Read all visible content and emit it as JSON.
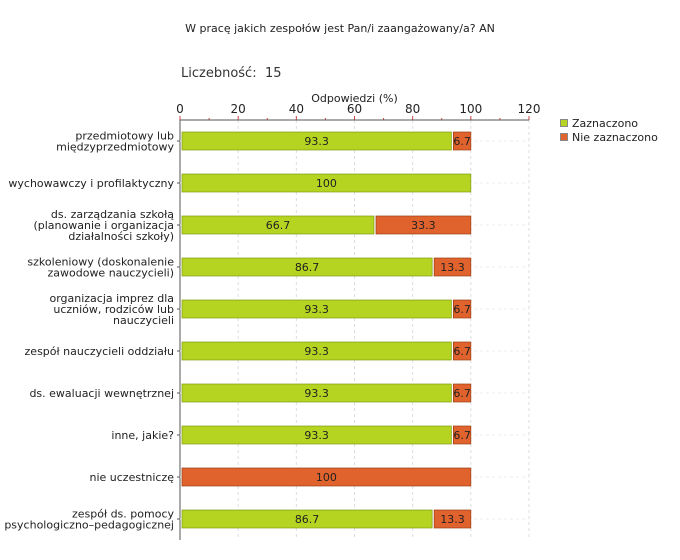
{
  "header": {
    "title": "W pracę jakich zespołów jest Pan/i zaangażowany/a? AN",
    "count_label": "Liczebność:",
    "count_value": "15"
  },
  "legend": {
    "items": [
      {
        "label": "Zaznaczono",
        "color": "#b5d422"
      },
      {
        "label": "Nie zaznaczono",
        "color": "#e0622c"
      }
    ]
  },
  "chart_data": {
    "type": "bar",
    "orientation": "horizontal",
    "stacked": true,
    "title": "W pracę jakich zespołów jest Pan/i zaangażowany/a? AN",
    "xlabel": "Odpowiedzi (%)",
    "ylabel": "",
    "xlim": [
      0,
      120
    ],
    "xticks": [
      0,
      20,
      40,
      60,
      80,
      100,
      120
    ],
    "grid": true,
    "legend_position": "right",
    "categories": [
      [
        "przedmiotowy lub",
        "międzyprzedmiotowy"
      ],
      [
        "wychowawczy i profilaktyczny"
      ],
      [
        "ds. zarządzania szkołą",
        "(planowanie i organizacja",
        "działalności szkoły)"
      ],
      [
        "szkoleniowy (doskonalenie",
        "zawodowe nauczycieli)"
      ],
      [
        "organizacja imprez dla",
        "uczniów, rodziców lub",
        "nauczycieli"
      ],
      [
        "zespół nauczycieli oddziału"
      ],
      [
        "ds. ewaluacji wewnętrznej"
      ],
      [
        "inne, jakie?"
      ],
      [
        "nie uczestniczę"
      ],
      [
        "zespół ds. pomocy",
        "psychologiczno–pedagogicznej"
      ]
    ],
    "series": [
      {
        "name": "Zaznaczono",
        "color": "#b5d422",
        "values": [
          93.3,
          100,
          66.7,
          86.7,
          93.3,
          93.3,
          93.3,
          93.3,
          0,
          86.7
        ]
      },
      {
        "name": "Nie zaznaczono",
        "color": "#e0622c",
        "values": [
          6.7,
          0,
          33.3,
          13.3,
          6.7,
          6.7,
          6.7,
          6.7,
          100,
          13.3
        ]
      }
    ]
  }
}
